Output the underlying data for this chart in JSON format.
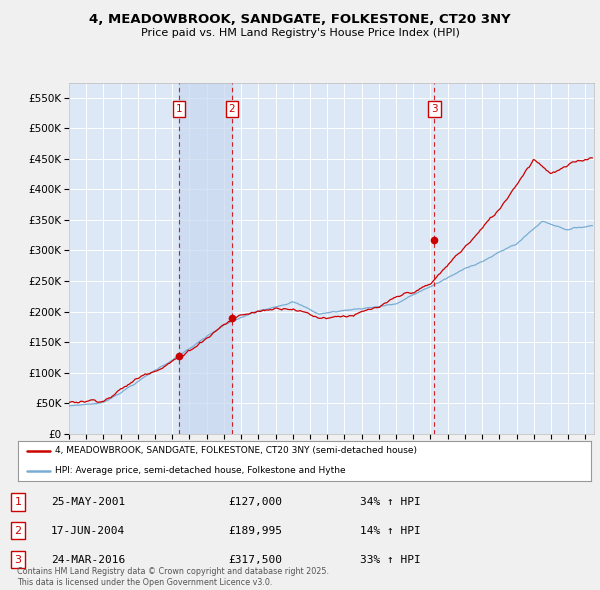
{
  "title": "4, MEADOWBROOK, SANDGATE, FOLKESTONE, CT20 3NY",
  "subtitle": "Price paid vs. HM Land Registry's House Price Index (HPI)",
  "background_color": "#f0f0f0",
  "plot_bg_color": "#dce8f5",
  "ylim": [
    0,
    575000
  ],
  "yticks": [
    0,
    50000,
    100000,
    150000,
    200000,
    250000,
    300000,
    350000,
    400000,
    450000,
    500000,
    550000
  ],
  "xlim_start": 1995.0,
  "xlim_end": 2025.5,
  "sale_dates": [
    2001.38,
    2004.46,
    2016.23
  ],
  "sale_prices": [
    127000,
    189995,
    317500
  ],
  "sale_labels": [
    "1",
    "2",
    "3"
  ],
  "table_rows": [
    [
      "1",
      "25-MAY-2001",
      "£127,000",
      "34% ↑ HPI"
    ],
    [
      "2",
      "17-JUN-2004",
      "£189,995",
      "14% ↑ HPI"
    ],
    [
      "3",
      "24-MAR-2016",
      "£317,500",
      "33% ↑ HPI"
    ]
  ],
  "legend_label_red": "4, MEADOWBROOK, SANDGATE, FOLKESTONE, CT20 3NY (semi-detached house)",
  "legend_label_blue": "HPI: Average price, semi-detached house, Folkestone and Hythe",
  "footnote": "Contains HM Land Registry data © Crown copyright and database right 2025.\nThis data is licensed under the Open Government Licence v3.0.",
  "red_color": "#cc0000",
  "hpi_color": "#7aadd4"
}
